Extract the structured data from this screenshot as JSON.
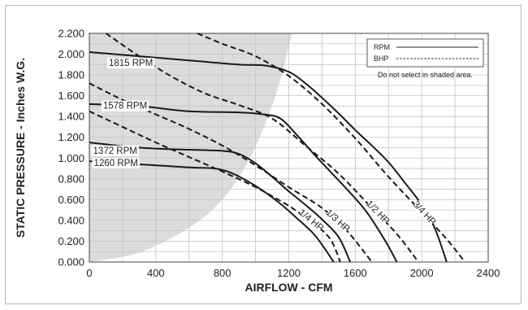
{
  "chart_data": {
    "type": "line",
    "xlabel": "AIRFLOW - CFM",
    "ylabel": "STATIC PRESSURE - Inches W.G.",
    "xlim": [
      0,
      2400
    ],
    "ylim": [
      0,
      2.2
    ],
    "xticks": [
      "0",
      "400",
      "800",
      "1200",
      "1600",
      "2000",
      "2400"
    ],
    "yticks": [
      "0.000",
      "0.200",
      "0.400",
      "0.600",
      "0.800",
      "1.000",
      "1.200",
      "1.400",
      "1.600",
      "1.800",
      "2.000",
      "2.200"
    ],
    "grid": true,
    "legend": {
      "placement": "top-right",
      "entries": [
        "RPM",
        "BHP"
      ],
      "note": "Do not select in shaded area."
    },
    "shaded_region": {
      "boundary": [
        [
          0,
          0
        ],
        [
          300,
          0.09
        ],
        [
          600,
          0.33
        ],
        [
          800,
          0.6
        ],
        [
          950,
          0.95
        ],
        [
          1050,
          1.3
        ],
        [
          1130,
          1.65
        ],
        [
          1190,
          2.0
        ],
        [
          1220,
          2.2
        ]
      ]
    },
    "rpm_series": [
      {
        "name": "1815 RPM",
        "points": [
          [
            0,
            2.02
          ],
          [
            300,
            1.98
          ],
          [
            600,
            1.94
          ],
          [
            900,
            1.9
          ],
          [
            1060,
            1.89
          ],
          [
            1200,
            1.83
          ],
          [
            1300,
            1.72
          ],
          [
            1400,
            1.58
          ],
          [
            1500,
            1.43
          ],
          [
            1600,
            1.27
          ],
          [
            1700,
            1.12
          ],
          [
            1800,
            0.96
          ],
          [
            1900,
            0.76
          ],
          [
            2000,
            0.55
          ],
          [
            2080,
            0.32
          ],
          [
            2150,
            0.0
          ]
        ]
      },
      {
        "name": "1578 RPM",
        "points": [
          [
            0,
            1.52
          ],
          [
            300,
            1.5
          ],
          [
            600,
            1.45
          ],
          [
            900,
            1.44
          ],
          [
            1050,
            1.42
          ],
          [
            1150,
            1.38
          ],
          [
            1250,
            1.22
          ],
          [
            1350,
            1.04
          ],
          [
            1450,
            0.87
          ],
          [
            1550,
            0.7
          ],
          [
            1650,
            0.52
          ],
          [
            1720,
            0.36
          ],
          [
            1800,
            0.15
          ],
          [
            1850,
            0.0
          ]
        ]
      },
      {
        "name": "1372 RPM",
        "points": [
          [
            0,
            1.15
          ],
          [
            300,
            1.1
          ],
          [
            600,
            1.08
          ],
          [
            800,
            1.07
          ],
          [
            900,
            1.04
          ],
          [
            1000,
            0.95
          ],
          [
            1100,
            0.82
          ],
          [
            1200,
            0.68
          ],
          [
            1300,
            0.55
          ],
          [
            1400,
            0.41
          ],
          [
            1500,
            0.24
          ],
          [
            1570,
            0.0
          ]
        ]
      },
      {
        "name": "1260 RPM",
        "points": [
          [
            0,
            0.97
          ],
          [
            300,
            0.94
          ],
          [
            600,
            0.91
          ],
          [
            750,
            0.9
          ],
          [
            850,
            0.86
          ],
          [
            950,
            0.78
          ],
          [
            1050,
            0.68
          ],
          [
            1150,
            0.56
          ],
          [
            1250,
            0.42
          ],
          [
            1350,
            0.27
          ],
          [
            1420,
            0.12
          ],
          [
            1470,
            0.0
          ]
        ]
      }
    ],
    "bhp_series": [
      {
        "name": "1/4 HP",
        "points": [
          [
            0,
            1.45
          ],
          [
            200,
            1.3
          ],
          [
            400,
            1.15
          ],
          [
            600,
            1.01
          ],
          [
            800,
            0.87
          ],
          [
            1000,
            0.72
          ],
          [
            1200,
            0.54
          ],
          [
            1350,
            0.37
          ],
          [
            1450,
            0.22
          ],
          [
            1510,
            0.0
          ]
        ]
      },
      {
        "name": "1/3 HP",
        "points": [
          [
            0,
            1.72
          ],
          [
            200,
            1.56
          ],
          [
            400,
            1.42
          ],
          [
            600,
            1.28
          ],
          [
            800,
            1.12
          ],
          [
            1000,
            0.93
          ],
          [
            1200,
            0.72
          ],
          [
            1400,
            0.52
          ],
          [
            1550,
            0.3
          ],
          [
            1700,
            0.0
          ]
        ]
      },
      {
        "name": "1/2 HP",
        "points": [
          [
            100,
            2.2
          ],
          [
            300,
            1.98
          ],
          [
            500,
            1.78
          ],
          [
            700,
            1.62
          ],
          [
            900,
            1.51
          ],
          [
            1100,
            1.38
          ],
          [
            1300,
            1.12
          ],
          [
            1500,
            0.85
          ],
          [
            1700,
            0.52
          ],
          [
            1850,
            0.27
          ],
          [
            1980,
            0.0
          ]
        ]
      },
      {
        "name": "3/4 HP",
        "points": [
          [
            650,
            2.2
          ],
          [
            800,
            2.1
          ],
          [
            1000,
            1.98
          ],
          [
            1200,
            1.79
          ],
          [
            1400,
            1.52
          ],
          [
            1600,
            1.19
          ],
          [
            1800,
            0.82
          ],
          [
            2000,
            0.48
          ],
          [
            2150,
            0.22
          ],
          [
            2260,
            0.0
          ]
        ]
      }
    ]
  }
}
